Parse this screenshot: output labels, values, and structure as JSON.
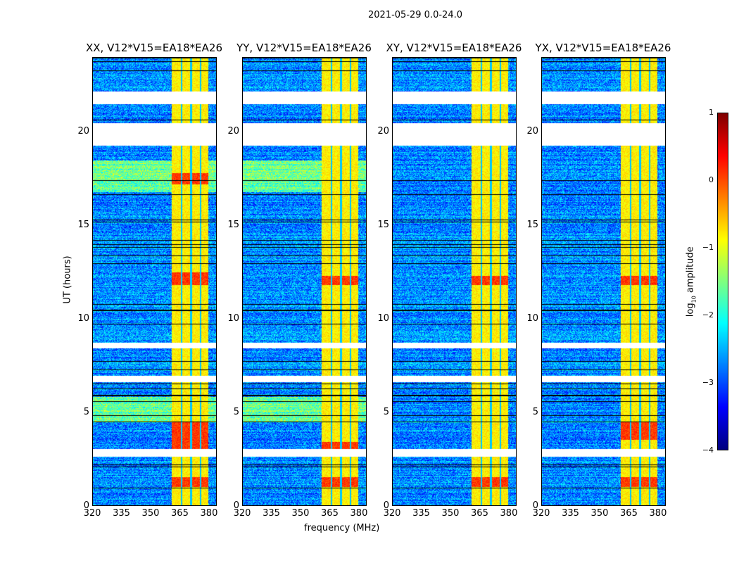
{
  "chart_data": {
    "type": "heatmap",
    "title": "2021-05-29 0.0-24.0",
    "xlabel": "frequency (MHz)",
    "ylabel": "UT (hours)",
    "xlim": [
      320,
      384
    ],
    "ylim": [
      0,
      24
    ],
    "xticks": [
      "320",
      "335",
      "350",
      "365",
      "380"
    ],
    "xtick_values": [
      320,
      335,
      350,
      365,
      380
    ],
    "yticks": [
      "0",
      "5",
      "10",
      "15",
      "20"
    ],
    "ytick_values": [
      0,
      5,
      10,
      15,
      20
    ],
    "colorbar": {
      "label_main": "log",
      "label_sub": "10",
      "label_rest": " amplitude",
      "range": [
        -4,
        1
      ],
      "ticks": [
        "−4",
        "−3",
        "−2",
        "−1",
        "0",
        "1"
      ],
      "tick_values": [
        -4,
        -3,
        -2,
        -1,
        0,
        1
      ],
      "colormap": "jet"
    },
    "flagged_hours": [
      [
        2.6,
        3.0
      ],
      [
        6.6,
        6.95
      ],
      [
        8.4,
        8.7
      ],
      [
        19.3,
        20.5
      ],
      [
        21.5,
        22.2
      ]
    ],
    "rfi_band_mhz": [
      361,
      380
    ],
    "background_level": -2.7,
    "band_level": -0.8,
    "panels": [
      {
        "title": "XX, V12*V15=EA18*EA26",
        "hot_hours": [
          [
            1.0,
            1.5
          ],
          [
            3.0,
            4.5
          ],
          [
            11.8,
            12.5
          ],
          [
            17.2,
            17.8
          ]
        ]
      },
      {
        "title": "YY, V12*V15=EA18*EA26",
        "hot_hours": [
          [
            1.0,
            1.5
          ],
          [
            11.8,
            12.3
          ],
          [
            3.0,
            3.4
          ]
        ]
      },
      {
        "title": "XY, V12*V15=EA18*EA26",
        "hot_hours": [
          [
            1.0,
            1.5
          ],
          [
            11.8,
            12.3
          ]
        ]
      },
      {
        "title": "YX, V12*V15=EA18*EA26",
        "hot_hours": [
          [
            1.0,
            1.5
          ],
          [
            11.8,
            12.3
          ],
          [
            3.5,
            4.5
          ]
        ]
      }
    ]
  }
}
